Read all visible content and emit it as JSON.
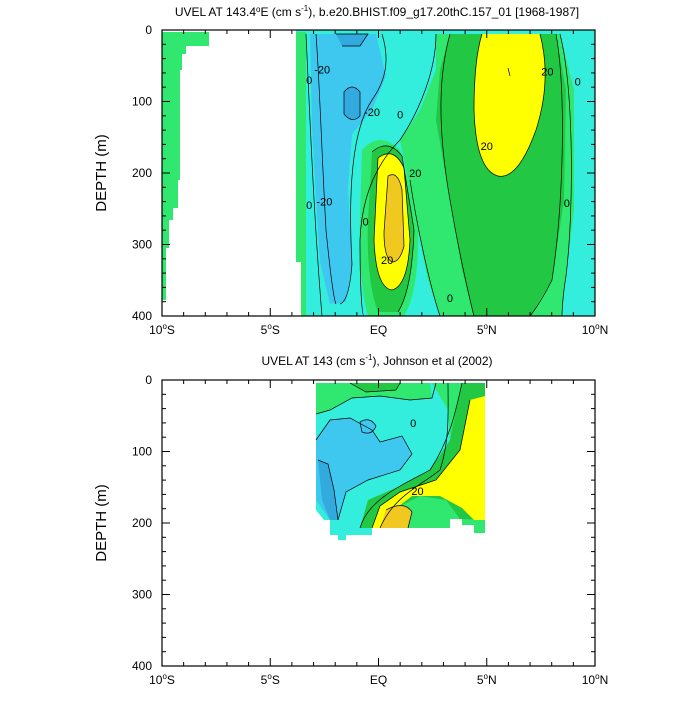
{
  "chart_data": [
    {
      "type": "contour",
      "title_main": "UVEL AT 143.4",
      "title_deg_e": "E (cm s",
      "title_unit_sup": "-1",
      "title_rest": "), b.e20.BHIST.f09_g17.20thC.157_01 [1968-1987]",
      "ylabel": "DEPTH (m)",
      "xlim": [
        -10,
        10
      ],
      "ylim": [
        400,
        0
      ],
      "xticks": [
        {
          "value": -10,
          "num": "10",
          "sup": "o",
          "hemi": "S"
        },
        {
          "value": -5,
          "num": "5",
          "sup": "o",
          "hemi": "S"
        },
        {
          "value": 0,
          "num": "EQ",
          "sup": "",
          "hemi": ""
        },
        {
          "value": 5,
          "num": "5",
          "sup": "o",
          "hemi": "N"
        },
        {
          "value": 10,
          "num": "10",
          "sup": "o",
          "hemi": "N"
        }
      ],
      "yticks": [
        0,
        100,
        200,
        300,
        400
      ],
      "contour_labels": [
        {
          "text": "0",
          "lat": -3.2,
          "depth": 70
        },
        {
          "text": "-20",
          "lat": -2.6,
          "depth": 55
        },
        {
          "text": "-20",
          "lat": -0.3,
          "depth": 115
        },
        {
          "text": "0",
          "lat": 1.0,
          "depth": 118
        },
        {
          "text": "20",
          "lat": 1.7,
          "depth": 200
        },
        {
          "text": "0",
          "lat": -3.2,
          "depth": 245
        },
        {
          "text": "-20",
          "lat": -2.5,
          "depth": 240
        },
        {
          "text": "0",
          "lat": -0.6,
          "depth": 268
        },
        {
          "text": "20",
          "lat": 0.4,
          "depth": 322
        },
        {
          "text": "20",
          "lat": 5.0,
          "depth": 162
        },
        {
          "text": "20",
          "lat": 7.8,
          "depth": 58
        },
        {
          "text": "0",
          "lat": 9.2,
          "depth": 72
        },
        {
          "text": "0",
          "lat": 8.7,
          "depth": 242
        },
        {
          "text": "0",
          "lat": 3.3,
          "depth": 375
        }
      ]
    },
    {
      "type": "contour",
      "title_main": "UVEL AT 143 (cm s",
      "title_unit_sup": "-1",
      "title_rest": "), Johnson et al (2002)",
      "ylabel": "DEPTH (m)",
      "xlim": [
        -10,
        10
      ],
      "ylim": [
        400,
        0
      ],
      "xticks": [
        {
          "value": -10,
          "num": "10",
          "sup": "o",
          "hemi": "S"
        },
        {
          "value": -5,
          "num": "5",
          "sup": "o",
          "hemi": "S"
        },
        {
          "value": 0,
          "num": "EQ",
          "sup": "",
          "hemi": ""
        },
        {
          "value": 5,
          "num": "5",
          "sup": "o",
          "hemi": "N"
        },
        {
          "value": 10,
          "num": "10",
          "sup": "o",
          "hemi": "N"
        }
      ],
      "yticks": [
        0,
        100,
        200,
        300,
        400
      ],
      "contour_labels": [
        {
          "text": "0",
          "lat": 1.6,
          "depth": 60
        },
        {
          "text": "20",
          "lat": 1.8,
          "depth": 155
        }
      ]
    }
  ],
  "colors": {
    "lt_blue": "#3ec8f0",
    "cyan": "#33eedd",
    "green_lt": "#30e870",
    "green": "#22c844",
    "yellow": "#ffff00",
    "gold": "#f0c820"
  }
}
